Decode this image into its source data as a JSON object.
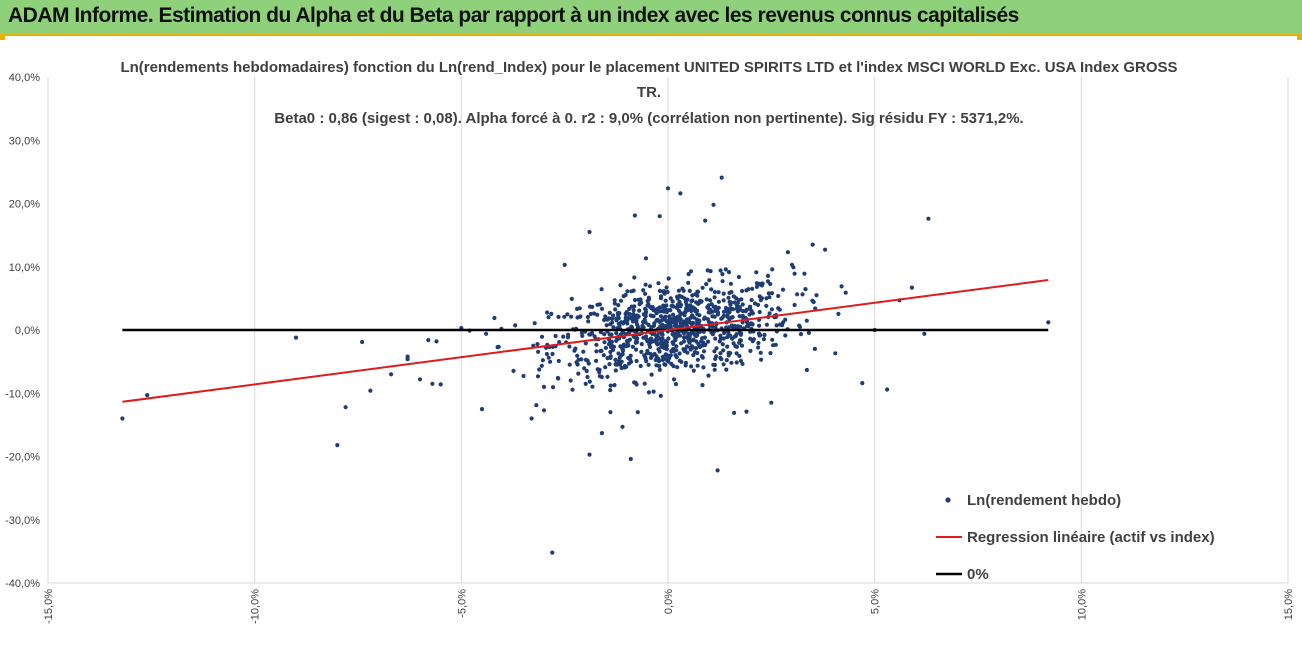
{
  "banner": {
    "title": "ADAM Informe. Estimation du Alpha et du Beta par rapport à un index avec les revenus connus capitalisés"
  },
  "colors": {
    "banner_bg": "#8fd07a",
    "banner_border": "#e8b000",
    "points": "#1f3c74",
    "regression": "#e01b1b",
    "zero_line": "#000000",
    "grid": "#d9d9d9"
  },
  "chart_data": {
    "type": "scatter",
    "title_lines": [
      "Ln(rendements hebdomadaires) fonction du Ln(rend_Index) pour le placement UNITED SPIRITS LTD et l'index MSCI WORLD Exc. USA Index GROSS",
      "TR.",
      "Beta0 : 0,86  (sigest : 0,08).  Alpha forcé à 0. r2 : 9,0% (corrélation non pertinente). Sig résidu FY : 5371,2%."
    ],
    "xlim": [
      -15,
      15
    ],
    "ylim": [
      -40,
      40
    ],
    "x_ticks": [
      "-15,0%",
      "-10,0%",
      "-5,0%",
      "0,0%",
      "5,0%",
      "10,0%",
      "15,0%"
    ],
    "x_tick_values": [
      -15,
      -10,
      -5,
      0,
      5,
      10,
      15
    ],
    "y_ticks": [
      "40,0%",
      "30,0%",
      "20,0%",
      "10,0%",
      "0,0%",
      "-10,0%",
      "-20,0%",
      "-30,0%",
      "-40,0%"
    ],
    "y_tick_values": [
      40,
      30,
      20,
      10,
      0,
      -10,
      -20,
      -30,
      -40
    ],
    "grid": "vertical",
    "legend_position": "bottom-right",
    "series": [
      {
        "name": "Ln(rendement hebdo)",
        "kind": "scatter",
        "points": [
          [
            -13.2,
            -14.0
          ],
          [
            -12.6,
            -10.3
          ],
          [
            -9.0,
            -1.2
          ],
          [
            -8.0,
            -18.2
          ],
          [
            -7.8,
            -12.2
          ],
          [
            -7.4,
            -1.9
          ],
          [
            -7.2,
            -9.6
          ],
          [
            -6.7,
            -7.0
          ],
          [
            -6.3,
            -4.2
          ],
          [
            -6.3,
            -4.6
          ],
          [
            -6.0,
            -7.8
          ],
          [
            -5.8,
            -1.6
          ],
          [
            -5.7,
            -8.5
          ],
          [
            -5.6,
            -1.8
          ],
          [
            -5.5,
            -8.6
          ],
          [
            -5.0,
            0.3
          ],
          [
            -4.5,
            -12.5
          ],
          [
            -2.8,
            -35.2
          ],
          [
            -1.9,
            -19.7
          ],
          [
            -1.9,
            15.5
          ],
          [
            -1.6,
            -16.3
          ],
          [
            -1.1,
            -15.3
          ],
          [
            -0.9,
            -20.4
          ],
          [
            -0.8,
            18.1
          ],
          [
            -0.2,
            18.0
          ],
          [
            0.0,
            22.4
          ],
          [
            0.3,
            21.6
          ],
          [
            0.9,
            17.3
          ],
          [
            1.1,
            19.8
          ],
          [
            1.3,
            24.1
          ],
          [
            1.2,
            -22.2
          ],
          [
            1.6,
            -13.1
          ],
          [
            1.9,
            -12.9
          ],
          [
            3.5,
            13.5
          ],
          [
            3.8,
            12.7
          ],
          [
            4.3,
            5.9
          ],
          [
            4.7,
            -8.4
          ],
          [
            5.0,
            0.0
          ],
          [
            5.3,
            -9.4
          ],
          [
            5.6,
            4.7
          ],
          [
            5.9,
            6.7
          ],
          [
            6.2,
            -0.6
          ],
          [
            6.3,
            17.6
          ],
          [
            9.2,
            1.2
          ],
          [
            -3.0,
            -9.0
          ],
          [
            2.5,
            -11.5
          ],
          [
            3.0,
            10.3
          ],
          [
            -2.5,
            10.3
          ],
          [
            -4.4,
            -0.6
          ],
          [
            -4.2,
            1.9
          ],
          [
            -3.3,
            -14.0
          ],
          [
            -3.0,
            -12.7
          ],
          [
            2.9,
            12.3
          ],
          [
            3.3,
            8.9
          ]
        ]
      },
      {
        "name": "Regression linéaire (actif vs index)",
        "kind": "line",
        "x": [
          -13.2,
          9.2
        ],
        "y": [
          -11.35,
          7.91
        ]
      },
      {
        "name": "0%",
        "kind": "line",
        "x": [
          -13.2,
          9.2
        ],
        "y": [
          0,
          0
        ]
      }
    ]
  }
}
